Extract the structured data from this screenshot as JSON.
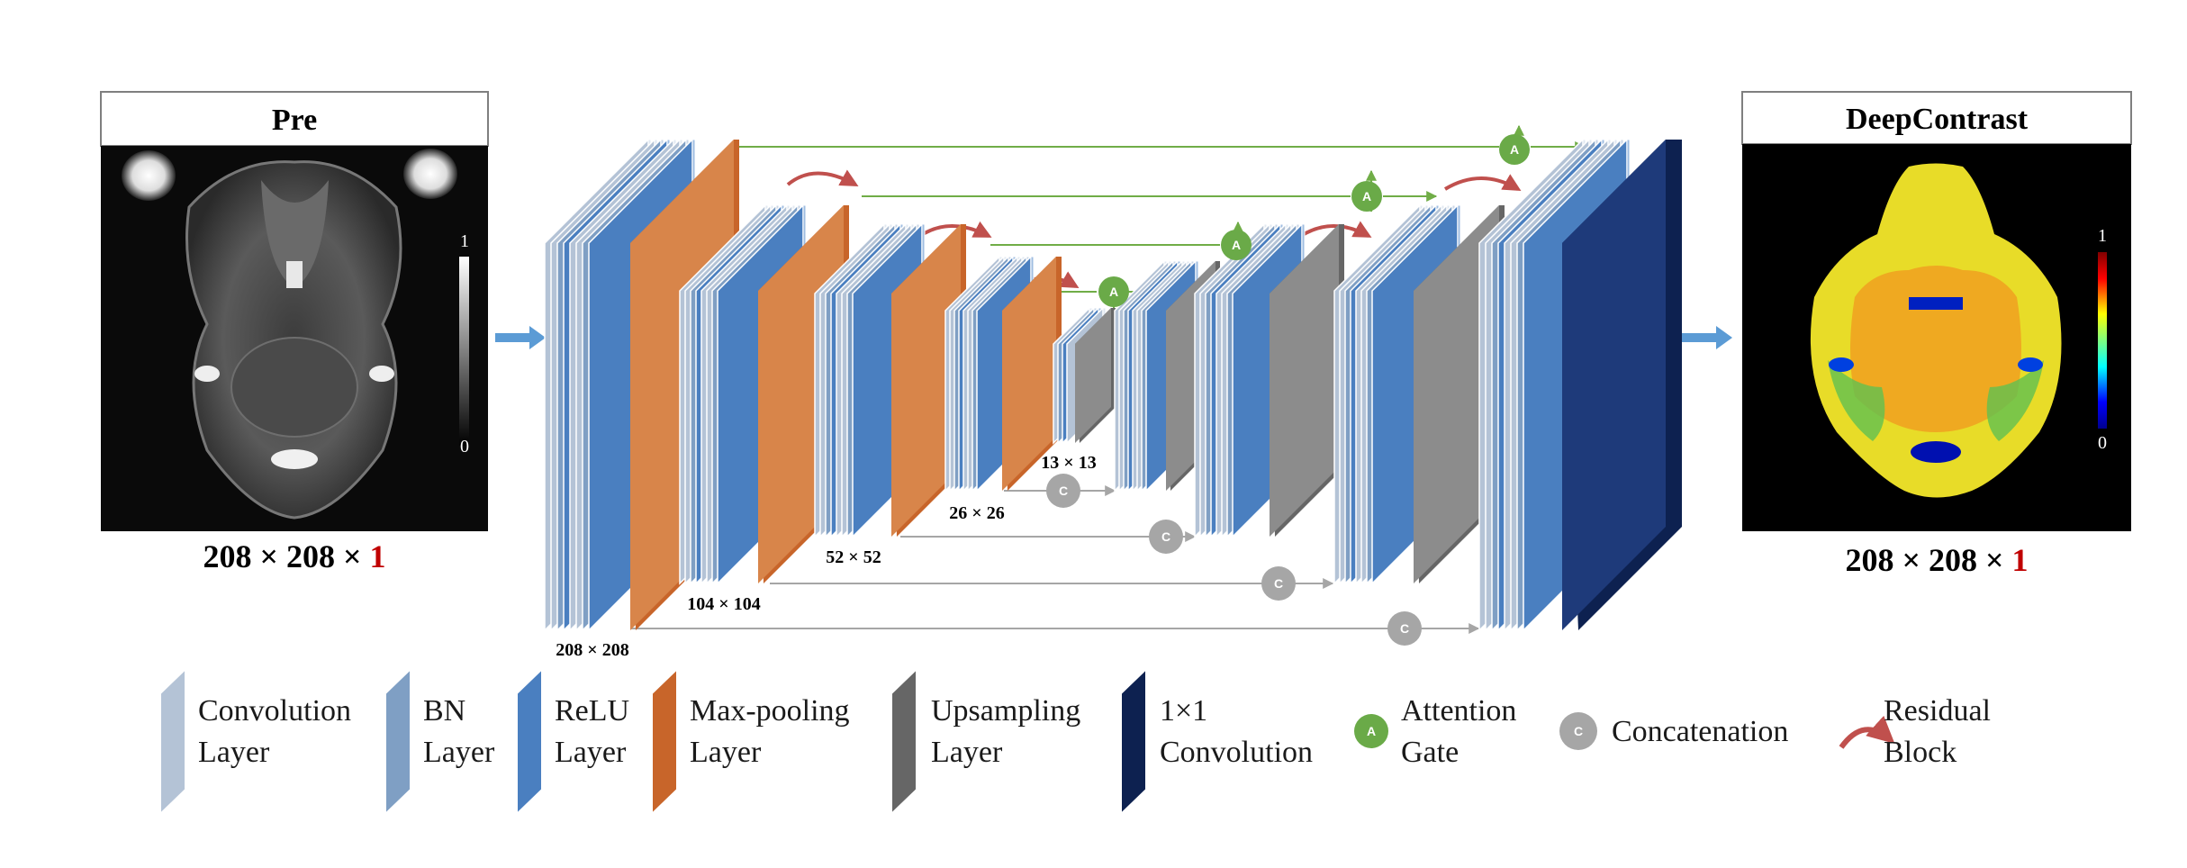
{
  "left_panel": {
    "title": "Pre",
    "dims_main": "208 × 208 × ",
    "dims_channel": "1",
    "colorbar_max": "1",
    "colorbar_min": "0"
  },
  "right_panel": {
    "title": "DeepContrast",
    "dims_main": "208 × 208 × ",
    "dims_channel": "1",
    "colorbar_max": "1",
    "colorbar_min": "0"
  },
  "size_labels": {
    "s208": "208 × 208",
    "s104": "104 × 104",
    "s52": "52 × 52",
    "s26": "26 × 26",
    "s13": "13 × 13"
  },
  "nodes": {
    "attention_letter": "A",
    "concat_letter": "C"
  },
  "legend": [
    {
      "id": "conv",
      "line1": "Convolution",
      "line2": "Layer",
      "color": "#b4c3d6"
    },
    {
      "id": "bn",
      "line1": "BN",
      "line2": "Layer",
      "color": "#7f9fc4"
    },
    {
      "id": "relu",
      "line1": "ReLU",
      "line2": "Layer",
      "color": "#4a7fc0"
    },
    {
      "id": "maxpool",
      "line1": "Max-pooling",
      "line2": "Layer",
      "color": "#c8652a"
    },
    {
      "id": "upsample",
      "line1": "Upsampling",
      "line2": "Layer",
      "color": "#666666"
    },
    {
      "id": "conv1x1",
      "line1": "1×1",
      "line2": "Convolution",
      "color": "#0d2150"
    },
    {
      "id": "attention",
      "line1": "Attention",
      "line2": "Gate",
      "color": "#6aaa48"
    },
    {
      "id": "concat",
      "line1": "Concatenation",
      "line2": "",
      "color": "#a6a6a6"
    },
    {
      "id": "residual",
      "line1": "Residual",
      "line2": "Block",
      "color": "#c0504d"
    }
  ],
  "colors": {
    "skip_line": "#70ad47",
    "concat_line": "#a6a6a6",
    "arrow_blue": "#5b9bd5",
    "residual": "#c0504d",
    "dims_red": "#c00000"
  }
}
